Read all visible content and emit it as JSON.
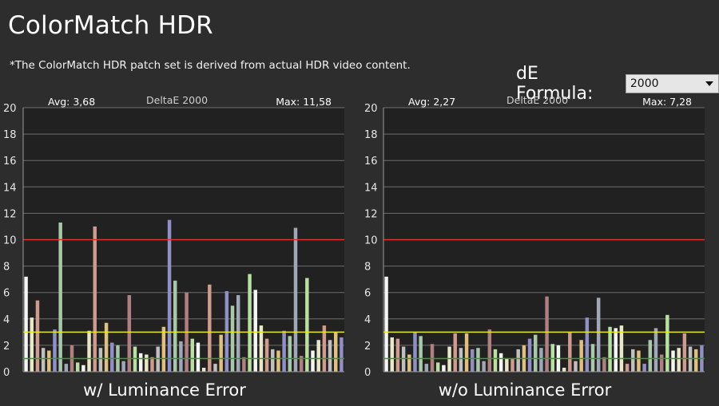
{
  "app": {
    "title": "ColorMatch HDR"
  },
  "note": "*The ColorMatch HDR patch set is derived from actual HDR video content.",
  "formula": {
    "label": "dE Formula:",
    "selected": "2000"
  },
  "colors": {
    "background": "#2d2d2d",
    "plot_bg": "#212121",
    "grid": "#6e6e6e",
    "threshold_10": "#e03030",
    "threshold_3": "#e8e820",
    "threshold_1": "#30a030",
    "palette": [
      "#f5f5f5",
      "#e8e8c8",
      "#d09a8e",
      "#c0c0c0",
      "#e0c080",
      "#9090c8",
      "#a8c8a8",
      "#a0a8b8",
      "#b08080",
      "#b8e0a0"
    ]
  },
  "chart_data": [
    {
      "type": "bar",
      "title": "DeltaE 2000",
      "avg_label": "Avg: 3,68",
      "max_label": "Max: 11,58",
      "caption": "w/ Luminance Error",
      "ylim": [
        0,
        20
      ],
      "yticks": [
        "0",
        "2",
        "4",
        "6",
        "8",
        "10",
        "12",
        "14",
        "16",
        "18",
        "20"
      ],
      "thresholds": [
        10,
        3,
        1
      ],
      "values": [
        7.2,
        4.1,
        5.4,
        1.8,
        1.6,
        3.2,
        11.3,
        0.6,
        2.0,
        0.7,
        0.5,
        3.1,
        11.0,
        1.8,
        3.7,
        2.2,
        2.0,
        0.8,
        5.8,
        1.9,
        1.4,
        1.3,
        1.1,
        1.9,
        3.4,
        11.5,
        6.9,
        2.3,
        6.0,
        2.5,
        2.2,
        0.3,
        6.6,
        0.6,
        2.8,
        6.1,
        5.0,
        5.8,
        1.1,
        7.4,
        6.2,
        3.5,
        2.5,
        1.7,
        1.6,
        3.1,
        2.7,
        10.9,
        1.2,
        7.1,
        1.6,
        2.4,
        3.5,
        2.4,
        3.0,
        2.6
      ]
    },
    {
      "type": "bar",
      "title": "DeltaE 2000",
      "avg_label": "Avg: 2,27",
      "max_label": "Max: 7,28",
      "caption": "w/o Luminance Error",
      "ylim": [
        0,
        20
      ],
      "yticks": [
        "0",
        "2",
        "4",
        "6",
        "8",
        "10",
        "12",
        "14",
        "16",
        "18",
        "20"
      ],
      "thresholds": [
        10,
        3,
        1
      ],
      "values": [
        7.2,
        2.6,
        2.5,
        1.9,
        1.3,
        3.0,
        2.7,
        0.6,
        2.1,
        0.7,
        0.5,
        1.9,
        2.9,
        1.8,
        2.9,
        1.7,
        1.8,
        0.8,
        3.2,
        1.7,
        1.4,
        1.0,
        1.0,
        1.7,
        2.0,
        2.5,
        2.8,
        1.8,
        5.7,
        2.1,
        2.0,
        0.3,
        3.0,
        0.8,
        2.4,
        4.1,
        2.1,
        5.6,
        1.1,
        3.4,
        3.3,
        3.5,
        0.6,
        1.7,
        1.6,
        0.6,
        2.4,
        3.3,
        1.3,
        4.3,
        1.6,
        1.8,
        2.9,
        1.9,
        1.7,
        2.0
      ]
    }
  ]
}
